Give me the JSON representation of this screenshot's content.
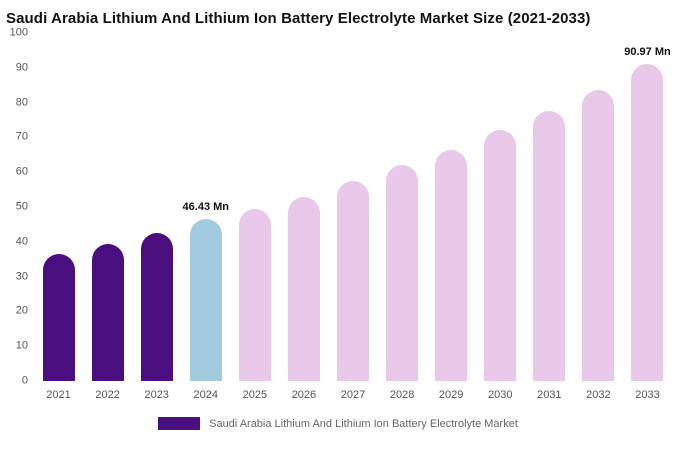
{
  "title": "Saudi Arabia Lithium And Lithium Ion Battery Electrolyte Market Size (2021-2033)",
  "legend": {
    "label": "Saudi Arabia Lithium And Lithium Ion Battery Electrolyte Market",
    "swatch_color": "#4b0e7e"
  },
  "colors": {
    "historical_bar": "#4b0e7e",
    "current_year_bar": "#a3cbe0",
    "forecast_bar": "#eac8ea",
    "title_text": "#111111",
    "axis_text": "#555555",
    "annotation_text": "#111111"
  },
  "chart_data": {
    "type": "bar",
    "title": "Saudi Arabia Lithium And Lithium Ion Battery Electrolyte Market Size (2021-2033)",
    "xlabel": "",
    "ylabel": "",
    "ylim": [
      0,
      100
    ],
    "yticks": [
      0,
      10,
      20,
      30,
      40,
      50,
      60,
      70,
      80,
      90,
      100
    ],
    "grid": false,
    "legend_position": "bottom",
    "categories": [
      "2021",
      "2022",
      "2023",
      "2024",
      "2025",
      "2026",
      "2027",
      "2028",
      "2029",
      "2030",
      "2031",
      "2032",
      "2033"
    ],
    "values": [
      36.5,
      39.5,
      42.5,
      46.43,
      49.5,
      53,
      57.5,
      62,
      66.5,
      72,
      77.5,
      83.5,
      90.97
    ],
    "bar_colors": [
      "#4b0e7e",
      "#4b0e7e",
      "#4b0e7e",
      "#a3cbe0",
      "#eac8ea",
      "#eac8ea",
      "#eac8ea",
      "#eac8ea",
      "#eac8ea",
      "#eac8ea",
      "#eac8ea",
      "#eac8ea",
      "#eac8ea"
    ],
    "annotations": [
      {
        "category": "2024",
        "label": "46.43 Mn"
      },
      {
        "category": "2033",
        "label": "90.97 Mn"
      }
    ]
  }
}
